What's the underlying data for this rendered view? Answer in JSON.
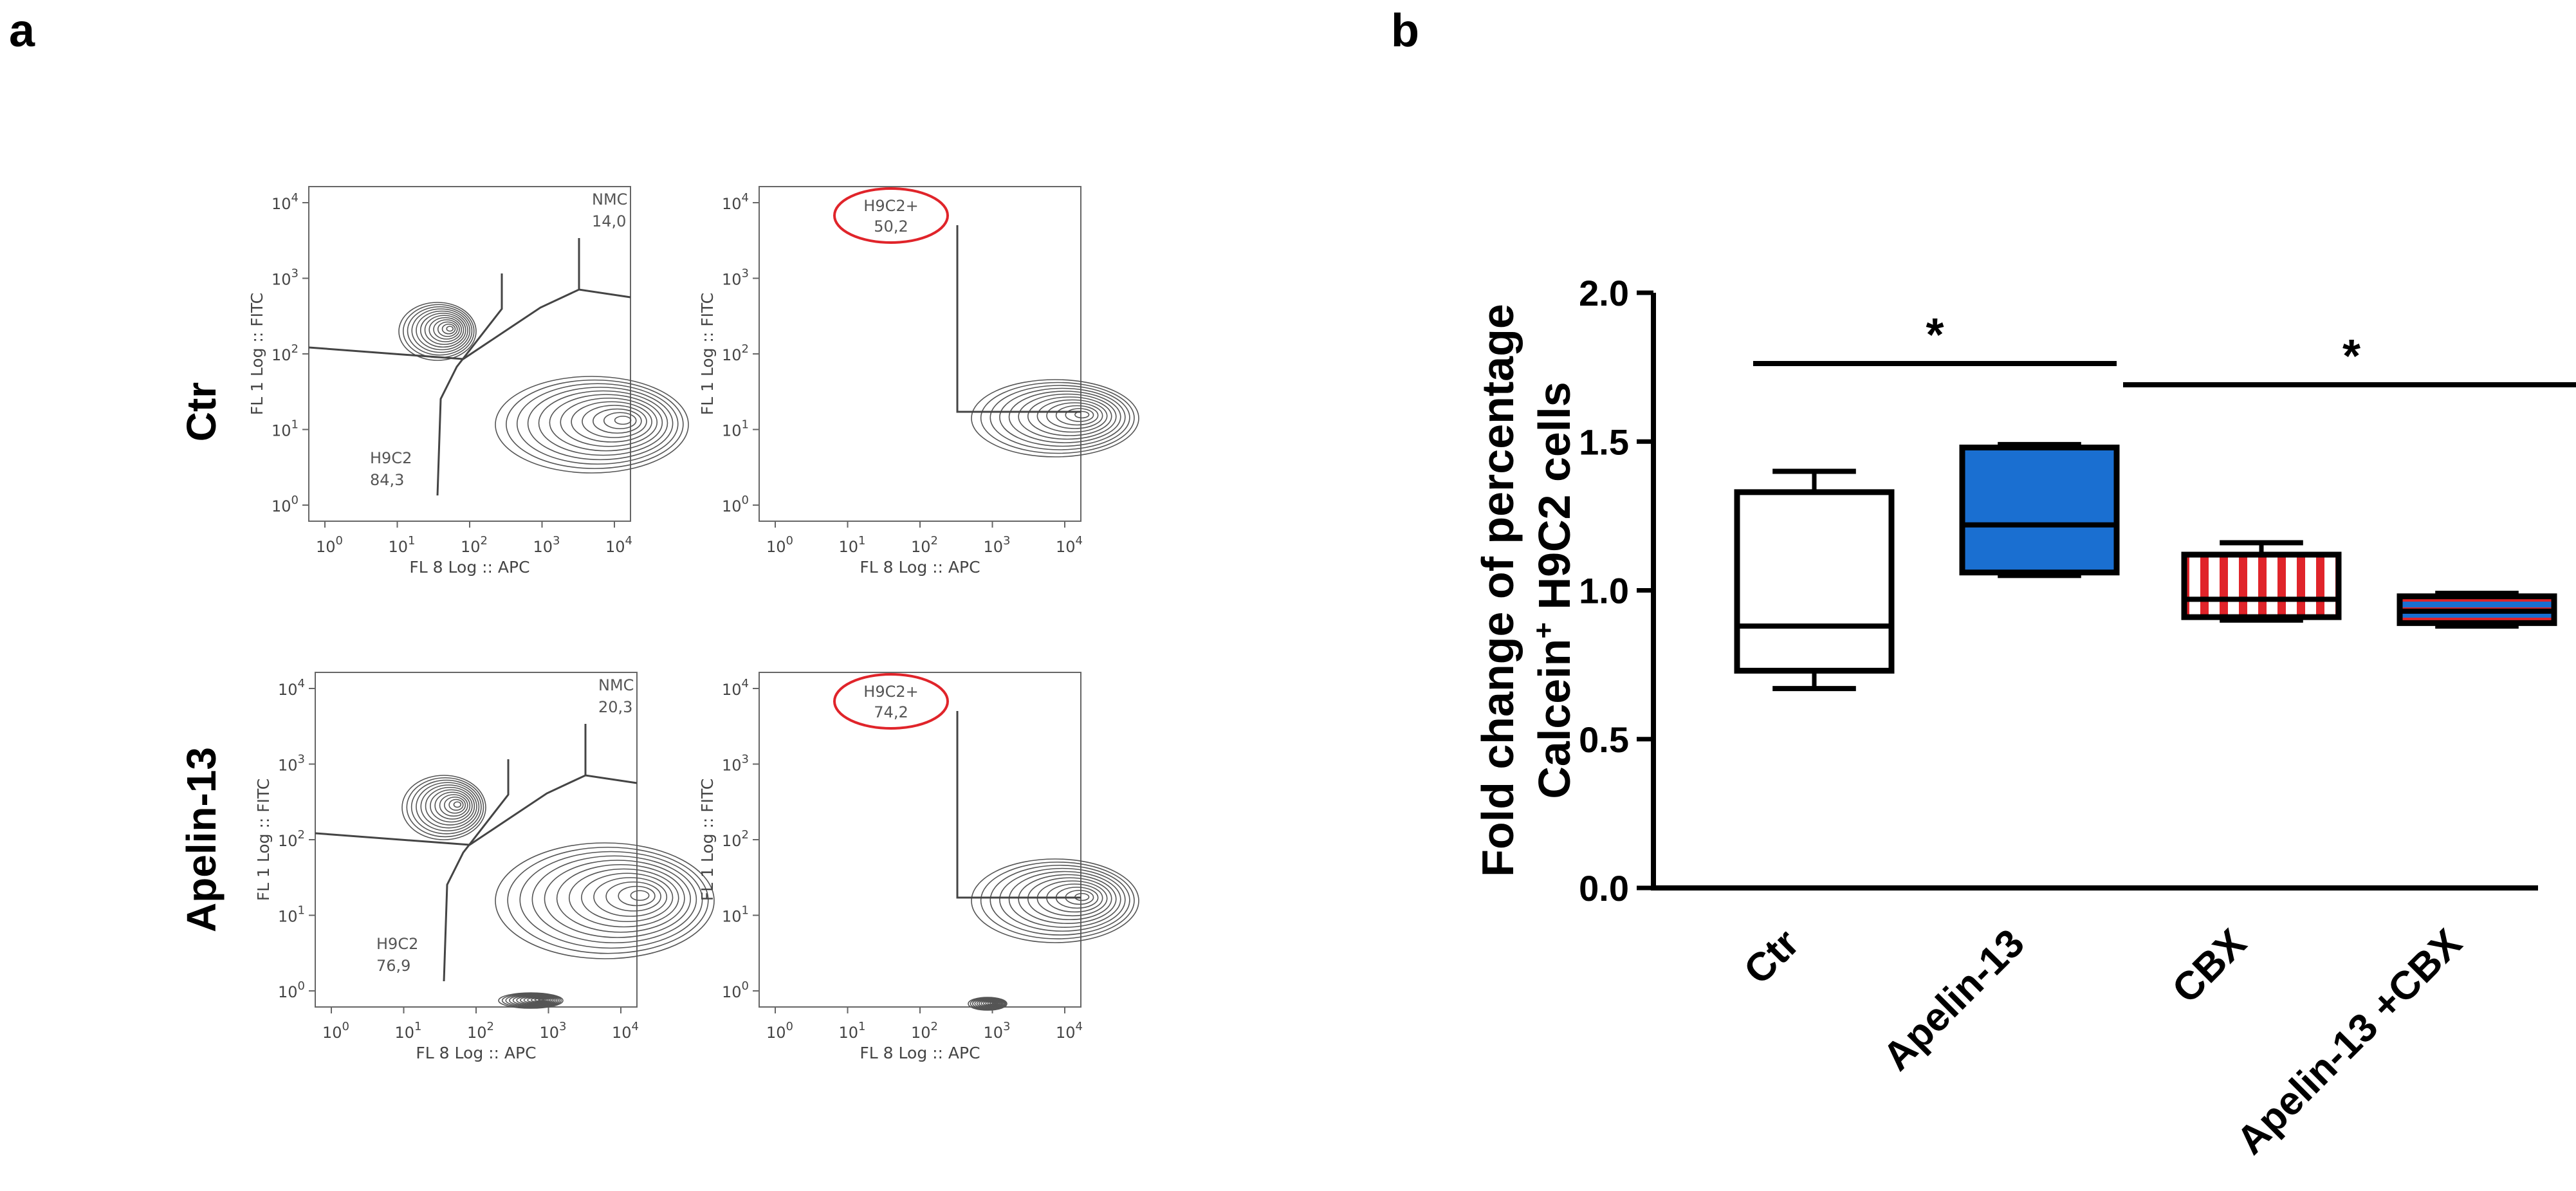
{
  "panels": {
    "a": "a",
    "b": "b"
  },
  "flow": {
    "rows": [
      "Ctr",
      "Apelin-13"
    ],
    "x_axis_label": "FL 8 Log :: APC",
    "y_axis_label": "FL 1 Log :: FITC",
    "tick_mantissa": [
      "10",
      "10",
      "10",
      "10",
      "10"
    ],
    "tick_exponent": [
      "0",
      "1",
      "2",
      "3",
      "4"
    ],
    "plots": [
      {
        "row": 0,
        "gates": [
          {
            "name": "NMC",
            "value": "14,0"
          },
          {
            "name": "H9C2",
            "value": "84,3"
          }
        ]
      },
      {
        "row": 0,
        "gates": [
          {
            "name": "H9C2+",
            "value": "50,2"
          }
        ]
      },
      {
        "row": 1,
        "gates": [
          {
            "name": "NMC",
            "value": "20,3"
          },
          {
            "name": "H9C2",
            "value": "76,9"
          }
        ]
      },
      {
        "row": 1,
        "gates": [
          {
            "name": "H9C2+",
            "value": "74,2"
          }
        ]
      }
    ]
  },
  "chart_data": {
    "type": "box",
    "ylabel_line1": "Fold change of percentage",
    "ylabel_line2_pre": "Calcein",
    "ylabel_line2_sup": "+",
    "ylabel_line2_post": " H9C2 cells",
    "ylim": [
      0.0,
      2.0
    ],
    "yticks": [
      "0.0",
      "0.5",
      "1.0",
      "1.5",
      "2.0"
    ],
    "categories": [
      "Ctr",
      "Apelin-13",
      "CBX",
      "Apelin-13 +CBX"
    ],
    "boxes": [
      {
        "min": 0.67,
        "q1": 0.73,
        "median": 0.88,
        "q3": 1.33,
        "max": 1.4,
        "fill": "#ffffff",
        "pattern": "none"
      },
      {
        "min": 1.05,
        "q1": 1.06,
        "median": 1.22,
        "q3": 1.48,
        "max": 1.49,
        "fill": "#1a6fd1",
        "pattern": "none"
      },
      {
        "min": 0.9,
        "q1": 0.91,
        "median": 0.97,
        "q3": 1.12,
        "max": 1.16,
        "fill": "#ffffff",
        "pattern": "red-vertical-stripes"
      },
      {
        "min": 0.88,
        "q1": 0.89,
        "median": 0.93,
        "q3": 0.98,
        "max": 0.99,
        "fill": "#1a6fd1",
        "pattern": "red-horizontal-stripes"
      }
    ],
    "significance": [
      {
        "from": "Ctr",
        "to": "Apelin-13",
        "label": "*"
      },
      {
        "from": "Apelin-13",
        "to": "Apelin-13 +CBX",
        "label": "*"
      }
    ],
    "colors": {
      "blue": "#1a6fd1",
      "red": "#e0242a",
      "outline": "#000000"
    }
  }
}
